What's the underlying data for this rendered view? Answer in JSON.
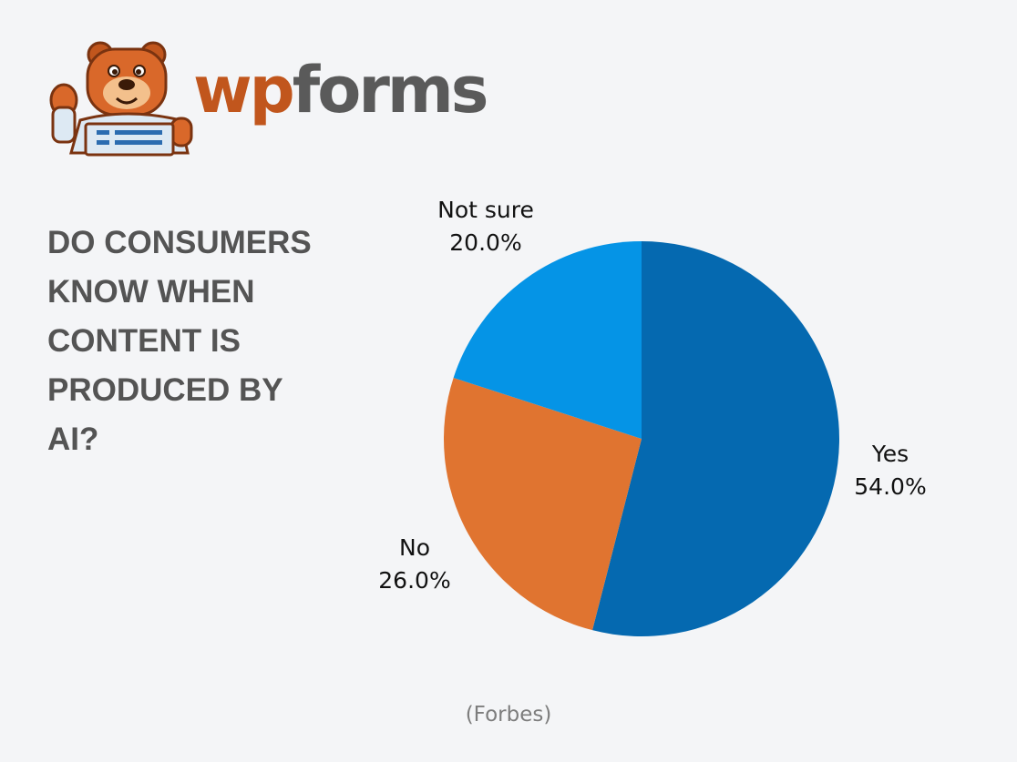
{
  "brand": {
    "logo_text_wp": "wp",
    "logo_text_forms": "forms",
    "mascot": "bear-mascot-icon"
  },
  "title": "DO CONSUMERS KNOW WHEN CONTENT IS PRODUCED BY AI?",
  "source": "(Forbes)",
  "chart_data": {
    "type": "pie",
    "title": "DO CONSUMERS KNOW WHEN CONTENT IS PRODUCED BY AI?",
    "slices": [
      {
        "label": "Yes",
        "value": 54.0,
        "display": "54.0%",
        "color": "#0569b0"
      },
      {
        "label": "No",
        "value": 26.0,
        "display": "26.0%",
        "color": "#e07430"
      },
      {
        "label": "Not sure",
        "value": 20.0,
        "display": "20.0%",
        "color": "#0594e6"
      }
    ],
    "start_angle": "12 o'clock",
    "direction": "clockwise",
    "legend": "none (labels outside slices)"
  }
}
